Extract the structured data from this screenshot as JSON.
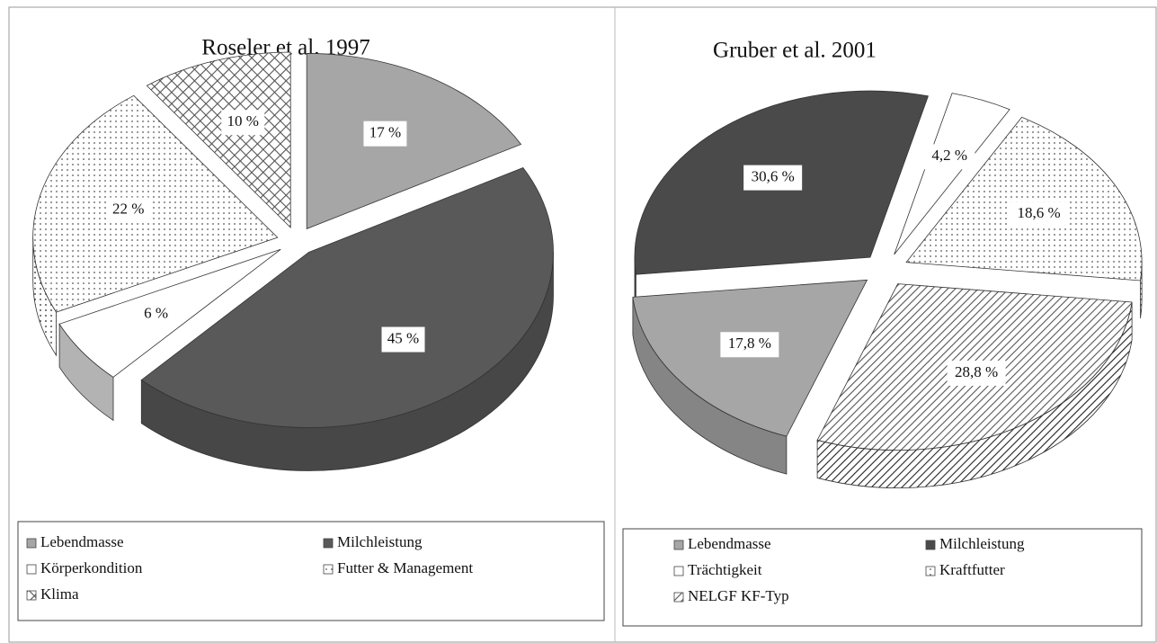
{
  "chart_data": [
    {
      "type": "pie",
      "title": "Roseler et al. 1997",
      "categories": [
        "Lebendmasse",
        "Milchleistung",
        "Körperkondition",
        "Futter & Management",
        "Klima"
      ],
      "values": [
        17,
        45,
        6,
        22,
        10
      ],
      "value_labels": [
        "17 %",
        "45 %",
        "6 %",
        "22 %",
        "10 %"
      ],
      "colors": [
        "#a6a6a6",
        "#595959",
        "#ffffff",
        "#555555",
        "#555555"
      ],
      "patterns": [
        "solid",
        "solid",
        "solid",
        "dots",
        "crosshatch"
      ]
    },
    {
      "type": "pie",
      "title": "Gruber et al. 2001",
      "categories": [
        "Lebendmasse",
        "Milchleistung",
        "Trächtigkeit",
        "Kraftfutter",
        "NELGF KF-Typ"
      ],
      "values": [
        17.8,
        30.6,
        4.2,
        18.6,
        28.8
      ],
      "value_labels": [
        "17,8 %",
        "30,6 %",
        "4,2 %",
        "18,6 %",
        "28,8 %"
      ],
      "colors": [
        "#a6a6a6",
        "#4a4a4a",
        "#ffffff",
        "#555555",
        "#555555"
      ],
      "patterns": [
        "solid",
        "solid",
        "solid",
        "dots",
        "hatch"
      ]
    }
  ]
}
